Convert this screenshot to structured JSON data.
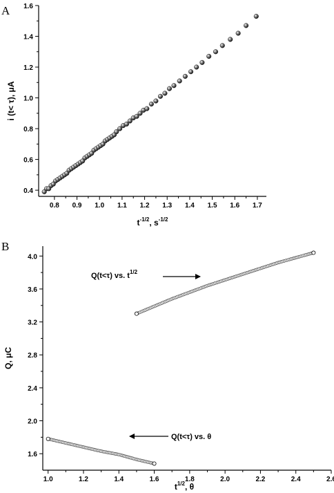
{
  "chart_data": [
    {
      "type": "scatter",
      "panel_label": "A",
      "xlabel": "t",
      "xlabel_sup": "-1/2",
      "xlabel_rest": ", s",
      "xlabel_sup2": "-1/2",
      "ylabel": "i (t< τ), μA",
      "xlim": [
        0.73,
        1.74
      ],
      "ylim": [
        0.36,
        1.6
      ],
      "xticks": [
        0.8,
        0.9,
        1.0,
        1.1,
        1.2,
        1.3,
        1.4,
        1.5,
        1.6,
        1.7
      ],
      "xtick_labels": [
        "0.8",
        "0.9",
        "1.0",
        "1.1",
        "1.2",
        "1.3",
        "1.4",
        "1.5",
        "1.6",
        "1.7"
      ],
      "yticks": [
        0.4,
        0.6,
        0.8,
        1.0,
        1.2,
        1.4,
        1.6
      ],
      "ytick_labels": [
        "0.4",
        "0.6",
        "0.8",
        "1.0",
        "1.2",
        "1.4",
        "1.6"
      ],
      "grid": false,
      "series": [
        {
          "marker": "filled-sphere",
          "x": [
            0.755,
            0.765,
            0.775,
            0.785,
            0.795,
            0.805,
            0.815,
            0.825,
            0.835,
            0.845,
            0.855,
            0.865,
            0.875,
            0.885,
            0.895,
            0.905,
            0.915,
            0.925,
            0.935,
            0.945,
            0.955,
            0.965,
            0.975,
            0.985,
            0.995,
            1.005,
            1.015,
            1.025,
            1.035,
            1.045,
            1.055,
            1.065,
            1.075,
            1.09,
            1.105,
            1.12,
            1.135,
            1.15,
            1.165,
            1.18,
            1.195,
            1.21,
            1.23,
            1.25,
            1.27,
            1.29,
            1.31,
            1.33,
            1.355,
            1.38,
            1.405,
            1.43,
            1.455,
            1.485,
            1.515,
            1.545,
            1.58,
            1.615,
            1.65,
            1.695
          ],
          "y": [
            0.39,
            0.41,
            0.41,
            0.43,
            0.44,
            0.46,
            0.47,
            0.48,
            0.49,
            0.5,
            0.51,
            0.53,
            0.54,
            0.55,
            0.56,
            0.57,
            0.58,
            0.59,
            0.61,
            0.62,
            0.63,
            0.64,
            0.66,
            0.67,
            0.68,
            0.69,
            0.7,
            0.72,
            0.73,
            0.74,
            0.75,
            0.76,
            0.78,
            0.8,
            0.82,
            0.83,
            0.85,
            0.87,
            0.88,
            0.9,
            0.92,
            0.93,
            0.96,
            0.98,
            1.01,
            1.03,
            1.06,
            1.08,
            1.11,
            1.14,
            1.17,
            1.2,
            1.23,
            1.27,
            1.3,
            1.34,
            1.38,
            1.42,
            1.47,
            1.53
          ]
        }
      ]
    },
    {
      "type": "line",
      "panel_label": "B",
      "xlabel": "t",
      "xlabel_sup": "1/2",
      "xlabel_rest": ", θ",
      "ylabel": "Q, μC",
      "xlim": [
        0.97,
        2.6
      ],
      "ylim": [
        1.4,
        4.12
      ],
      "xticks": [
        1.0,
        1.2,
        1.4,
        1.6,
        1.8,
        2.0,
        2.2,
        2.4,
        2.6
      ],
      "xtick_labels": [
        "1.0",
        "1.2",
        "1.4",
        "1.6",
        "1.8",
        "2.0",
        "2.2",
        "2.4",
        "2.6"
      ],
      "yticks": [
        1.6,
        2.0,
        2.4,
        2.8,
        3.2,
        3.6,
        4.0
      ],
      "ytick_labels": [
        "1.6",
        "2.0",
        "2.4",
        "2.8",
        "3.2",
        "3.6",
        "4.0"
      ],
      "grid": false,
      "series": [
        {
          "name": "Q(t<τ) vs. t^1/2",
          "marker": "open-circle",
          "x_start": 1.5,
          "x_end": 2.5,
          "x": [
            1.5,
            1.6,
            1.7,
            1.8,
            1.9,
            2.0,
            2.1,
            2.2,
            2.3,
            2.4,
            2.5
          ],
          "y": [
            3.3,
            3.39,
            3.48,
            3.56,
            3.64,
            3.71,
            3.78,
            3.85,
            3.92,
            3.98,
            4.04
          ]
        },
        {
          "name": "Q(t<τ) vs. θ",
          "marker": "open-circle",
          "x_start": 1.0,
          "x_end": 1.6,
          "x": [
            1.0,
            1.1,
            1.2,
            1.3,
            1.4,
            1.5,
            1.6
          ],
          "y": [
            1.78,
            1.73,
            1.68,
            1.63,
            1.59,
            1.53,
            1.48
          ]
        }
      ],
      "annotations": [
        {
          "text": "Q(t<τ) vs. t",
          "sup": "1/2",
          "arrow": "right"
        },
        {
          "text": "Q(t<τ) vs. θ",
          "sup": "",
          "arrow": "left"
        }
      ]
    }
  ]
}
